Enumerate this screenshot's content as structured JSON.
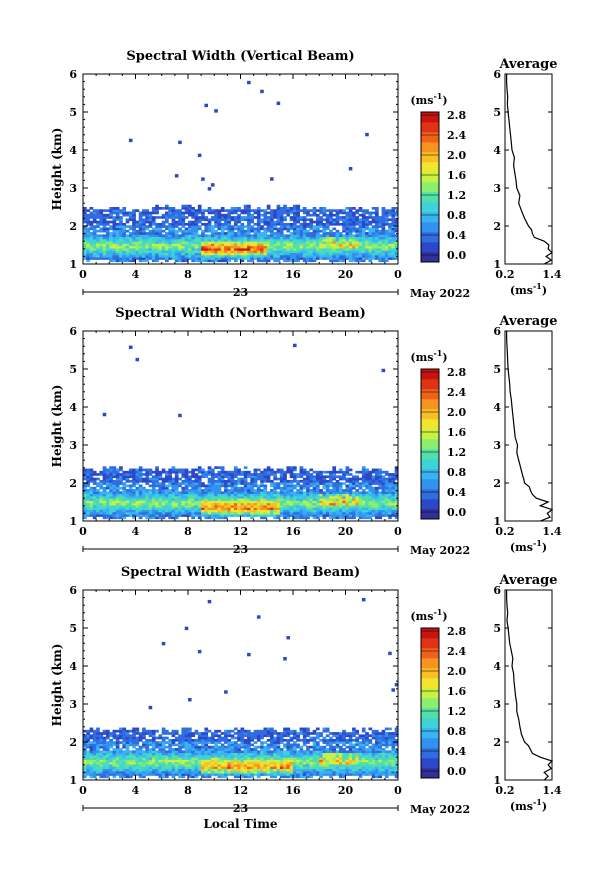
{
  "chart_data": [
    {
      "type": "heatmap",
      "title": "Spectral Width (Vertical Beam)",
      "ylabel": "Height (km)",
      "x_ticks": [
        "0",
        "4",
        "8",
        "12",
        "16",
        "20",
        "0"
      ],
      "y_ticks": [
        "1",
        "2",
        "3",
        "4",
        "5",
        "6"
      ],
      "ylim": [
        1,
        6
      ],
      "xlim": [
        0,
        24
      ],
      "date_day": "23",
      "date_label": "May 2022",
      "colorbar": {
        "unit": "(ms",
        "unit_sup": "-1",
        "unit_close": ")",
        "ticks": [
          "0.0",
          "0.4",
          "0.8",
          "1.2",
          "1.6",
          "2.0",
          "2.4",
          "2.8"
        ],
        "range": [
          0,
          3.0
        ]
      },
      "echo_top_km": 2.45,
      "hot_zone": {
        "t_start": 9,
        "t_end": 14,
        "h_center": 1.35,
        "max_value": 2.8
      },
      "average_profile": {
        "title": "Average",
        "xlabel": "(ms",
        "xlabel_sup": "-1",
        "xlabel_close": ")",
        "x_ticks": [
          "0.2",
          "1.4"
        ],
        "xlim": [
          0.2,
          1.4
        ],
        "height": [
          1.0,
          1.1,
          1.2,
          1.3,
          1.4,
          1.5,
          1.6,
          1.7,
          1.8,
          1.9,
          2.0,
          2.1,
          2.2,
          2.4,
          2.6,
          2.8,
          3.0,
          3.2,
          3.4,
          3.6,
          3.8,
          4.0,
          4.2,
          4.4,
          4.6,
          4.8,
          5.0,
          5.2,
          5.4,
          5.6,
          5.8,
          6.0
        ],
        "width": [
          1.2,
          1.38,
          1.25,
          1.4,
          1.3,
          1.32,
          1.2,
          0.95,
          0.9,
          0.88,
          0.8,
          0.75,
          0.7,
          0.62,
          0.55,
          0.58,
          0.5,
          0.48,
          0.45,
          0.42,
          0.44,
          0.38,
          0.36,
          0.34,
          0.32,
          0.3,
          0.28,
          0.26,
          0.27,
          0.25,
          0.24,
          0.24
        ]
      }
    },
    {
      "type": "heatmap",
      "title": "Spectral Width (Northward Beam)",
      "ylabel": "Height (km)",
      "x_ticks": [
        "0",
        "4",
        "8",
        "12",
        "16",
        "20",
        "0"
      ],
      "y_ticks": [
        "1",
        "2",
        "3",
        "4",
        "5",
        "6"
      ],
      "ylim": [
        1,
        6
      ],
      "xlim": [
        0,
        24
      ],
      "date_day": "23",
      "date_label": "May 2022",
      "colorbar": {
        "unit": "(ms",
        "unit_sup": "-1",
        "unit_close": ")",
        "ticks": [
          "0.0",
          "0.4",
          "0.8",
          "1.2",
          "1.6",
          "2.0",
          "2.4",
          "2.8"
        ],
        "range": [
          0,
          3.0
        ]
      },
      "echo_top_km": 2.35,
      "hot_zone": {
        "t_start": 9,
        "t_end": 15,
        "h_center": 1.3,
        "max_value": 2.7
      },
      "average_profile": {
        "title": "Average",
        "xlabel": "(ms",
        "xlabel_sup": "-1",
        "xlabel_close": ")",
        "x_ticks": [
          "0.2",
          "1.4"
        ],
        "xlim": [
          0.2,
          1.4
        ],
        "height": [
          1.0,
          1.1,
          1.2,
          1.3,
          1.4,
          1.5,
          1.6,
          1.7,
          1.8,
          1.9,
          2.0,
          2.1,
          2.2,
          2.4,
          2.6,
          2.8,
          3.0,
          3.2,
          3.4,
          3.6,
          3.8,
          4.0,
          4.2,
          4.4,
          4.6,
          4.8,
          5.0,
          5.2,
          5.4,
          5.6,
          5.8,
          6.0
        ],
        "width": [
          1.1,
          1.35,
          1.28,
          1.4,
          1.1,
          1.3,
          1.0,
          0.9,
          0.85,
          0.82,
          0.7,
          0.68,
          0.65,
          0.6,
          0.55,
          0.5,
          0.52,
          0.46,
          0.44,
          0.42,
          0.4,
          0.38,
          0.36,
          0.33,
          0.32,
          0.3,
          0.28,
          0.27,
          0.26,
          0.25,
          0.24,
          0.24
        ]
      }
    },
    {
      "type": "heatmap",
      "title": "Spectral Width (Eastward Beam)",
      "ylabel": "Height (km)",
      "xlabel": "Local Time",
      "x_ticks": [
        "0",
        "4",
        "8",
        "12",
        "16",
        "20",
        "0"
      ],
      "y_ticks": [
        "1",
        "2",
        "3",
        "4",
        "5",
        "6"
      ],
      "ylim": [
        1,
        6
      ],
      "xlim": [
        0,
        24
      ],
      "date_day": "23",
      "date_label": "May 2022",
      "colorbar": {
        "unit": "(ms",
        "unit_sup": "-1",
        "unit_close": ")",
        "ticks": [
          "0.0",
          "0.4",
          "0.8",
          "1.2",
          "1.6",
          "2.0",
          "2.4",
          "2.8"
        ],
        "range": [
          0,
          3.0
        ]
      },
      "echo_top_km": 2.3,
      "hot_zone": {
        "t_start": 9,
        "t_end": 16,
        "h_center": 1.3,
        "max_value": 2.6
      },
      "average_profile": {
        "title": "Average",
        "xlabel": "(ms",
        "xlabel_sup": "-1",
        "xlabel_close": ")",
        "x_ticks": [
          "0.2",
          "1.4"
        ],
        "xlim": [
          0.2,
          1.4
        ],
        "height": [
          1.0,
          1.1,
          1.2,
          1.3,
          1.4,
          1.5,
          1.6,
          1.7,
          1.8,
          1.9,
          2.0,
          2.1,
          2.2,
          2.4,
          2.6,
          2.8,
          3.0,
          3.2,
          3.4,
          3.6,
          3.8,
          4.0,
          4.2,
          4.4,
          4.6,
          4.8,
          5.0,
          5.2,
          5.4,
          5.6,
          5.8,
          6.0
        ],
        "width": [
          1.2,
          1.3,
          1.2,
          1.38,
          1.3,
          1.4,
          1.1,
          0.9,
          0.85,
          0.8,
          0.7,
          0.66,
          0.62,
          0.58,
          0.55,
          0.5,
          0.5,
          0.47,
          0.45,
          0.43,
          0.42,
          0.38,
          0.4,
          0.36,
          0.32,
          0.3,
          0.28,
          0.25,
          0.27,
          0.25,
          0.24,
          0.24
        ]
      }
    }
  ],
  "colors": {
    "colormap": [
      "#30309a",
      "#2c48c8",
      "#2f6de0",
      "#3391ef",
      "#39b4f2",
      "#3fd2d8",
      "#52e0a8",
      "#8ced6f",
      "#c6f243",
      "#f2e52e",
      "#f9bf25",
      "#f7931f",
      "#f0621a",
      "#e03214",
      "#c81410"
    ]
  }
}
